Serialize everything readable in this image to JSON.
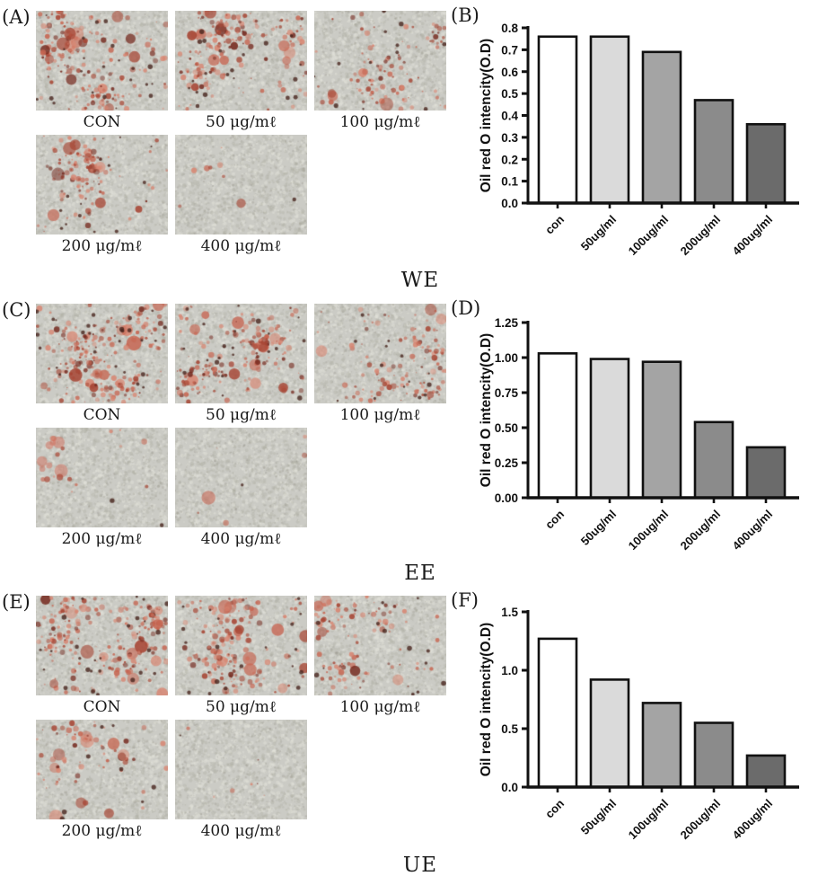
{
  "page": {
    "background": "#ffffff"
  },
  "groups": [
    {
      "micro_panel_letter": "(A)",
      "chart_panel_letter": "(B)",
      "group_label": "WE",
      "micrographs": [
        {
          "label": "CON",
          "stain_level": 0.85
        },
        {
          "label": "50 μg/mℓ",
          "stain_level": 0.78
        },
        {
          "label": "100 μg/mℓ",
          "stain_level": 0.45
        },
        {
          "label": "200 μg/mℓ",
          "stain_level": 0.5
        },
        {
          "label": "400 μg/mℓ",
          "stain_level": 0.04
        }
      ]
    },
    {
      "micro_panel_letter": "(C)",
      "chart_panel_letter": "(D)",
      "group_label": "EE",
      "micrographs": [
        {
          "label": "CON",
          "stain_level": 1.0
        },
        {
          "label": "50 μg/mℓ",
          "stain_level": 0.82
        },
        {
          "label": "100 μg/mℓ",
          "stain_level": 0.55
        },
        {
          "label": "200 μg/mℓ",
          "stain_level": 0.07,
          "accent": "top_left_blob"
        },
        {
          "label": "400 μg/mℓ",
          "stain_level": 0.03
        }
      ]
    },
    {
      "micro_panel_letter": "(E)",
      "chart_panel_letter": "(F)",
      "group_label": "UE",
      "micrographs": [
        {
          "label": "CON",
          "stain_level": 1.0
        },
        {
          "label": "50 μg/mℓ",
          "stain_level": 0.75
        },
        {
          "label": "100 μg/mℓ",
          "stain_level": 0.5
        },
        {
          "label": "200 μg/mℓ",
          "stain_level": 0.3
        },
        {
          "label": "400 μg/mℓ",
          "stain_level": 0.03
        }
      ]
    }
  ],
  "chart_data": [
    {
      "type": "bar",
      "panel": "(B)",
      "categories": [
        "con",
        "50ug/ml",
        "100ug/ml",
        "200ug/ml",
        "400ug/ml"
      ],
      "values": [
        0.76,
        0.76,
        0.69,
        0.47,
        0.36
      ],
      "xlabel": "",
      "ylabel": "Oil red O intencity(O.D)",
      "ylim": [
        0,
        0.8
      ],
      "ytick_step": 0.1,
      "ytick_decimals": 1,
      "grid": false,
      "legend": false,
      "bar_fills": [
        "#ffffff",
        "#dadada",
        "#a4a4a4",
        "#8b8b8b",
        "#6b6b6b"
      ],
      "bar_stroke": "#111111"
    },
    {
      "type": "bar",
      "panel": "(D)",
      "categories": [
        "con",
        "50ug/ml",
        "100ug/ml",
        "200ug/ml",
        "400ug/ml"
      ],
      "values": [
        1.03,
        0.99,
        0.97,
        0.54,
        0.36
      ],
      "xlabel": "",
      "ylabel": "Oil red O intencity(O.D)",
      "ylim": [
        0,
        1.25
      ],
      "ytick_step": 0.25,
      "ytick_decimals": 2,
      "grid": false,
      "legend": false,
      "bar_fills": [
        "#ffffff",
        "#dadada",
        "#a4a4a4",
        "#8b8b8b",
        "#6b6b6b"
      ],
      "bar_stroke": "#111111"
    },
    {
      "type": "bar",
      "panel": "(F)",
      "categories": [
        "con",
        "50ug/ml",
        "100ug/ml",
        "200ug/ml",
        "400ug/ml"
      ],
      "values": [
        1.27,
        0.92,
        0.72,
        0.55,
        0.27
      ],
      "xlabel": "",
      "ylabel": "Oil red O intencity(O.D)",
      "ylim": [
        0,
        1.5
      ],
      "ytick_step": 0.5,
      "ytick_decimals": 1,
      "grid": false,
      "legend": false,
      "bar_fills": [
        "#ffffff",
        "#dadada",
        "#a4a4a4",
        "#8b8b8b",
        "#6b6b6b"
      ],
      "bar_stroke": "#111111"
    }
  ],
  "micro_colors": {
    "background": "#cbcbc5",
    "stain_palette": [
      "#d88672",
      "#c76652",
      "#ac4634",
      "#762a1f"
    ],
    "dark_spot": "#48261e"
  }
}
